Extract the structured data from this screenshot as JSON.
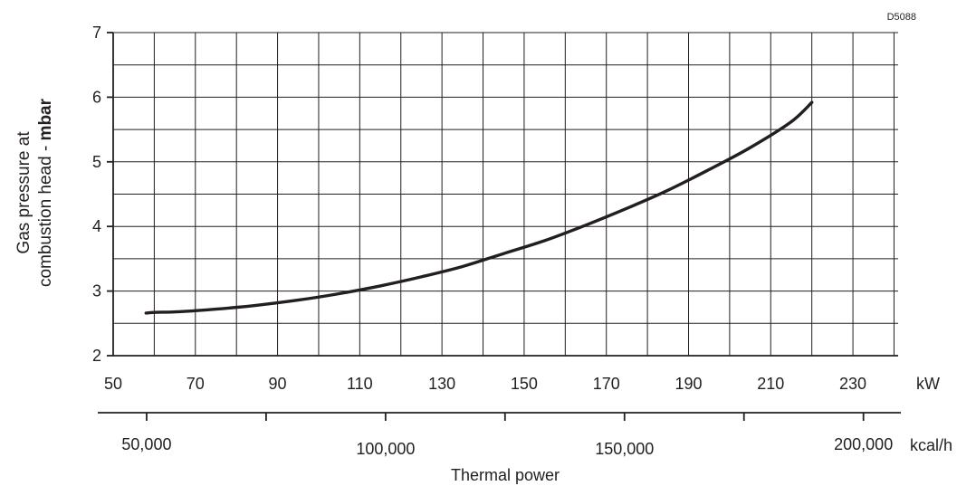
{
  "drawing_code": "D5088",
  "chart_data": {
    "type": "line",
    "title": "",
    "xlabel": "Thermal power",
    "ylabel_line1": "Gas pressure at",
    "ylabel_line2_prefix": "combustion head - ",
    "ylabel_line2_unit": "mbar",
    "x_unit_primary": "kW",
    "x_unit_secondary": "kcal/h",
    "xlim": [
      50,
      241
    ],
    "ylim": [
      2,
      7
    ],
    "grid": true,
    "x_ticks": [
      "50",
      "70",
      "90",
      "110",
      "130",
      "150",
      "170",
      "190",
      "210",
      "230"
    ],
    "y_ticks": [
      "2",
      "3",
      "4",
      "5",
      "6",
      "7"
    ],
    "secondary_x_ticks": [
      "50,000",
      "100,000",
      "150,000",
      "200,000"
    ],
    "series": [
      {
        "x": [
          58,
          60,
          66,
          75,
          85,
          95,
          105,
          115,
          125,
          135,
          145,
          155,
          165,
          175,
          185,
          195,
          205,
          215,
          220
        ],
        "y": [
          2.66,
          2.67,
          2.68,
          2.72,
          2.78,
          2.86,
          2.96,
          3.08,
          3.22,
          3.38,
          3.58,
          3.78,
          4.02,
          4.28,
          4.56,
          4.88,
          5.22,
          5.62,
          5.92
        ]
      }
    ]
  }
}
